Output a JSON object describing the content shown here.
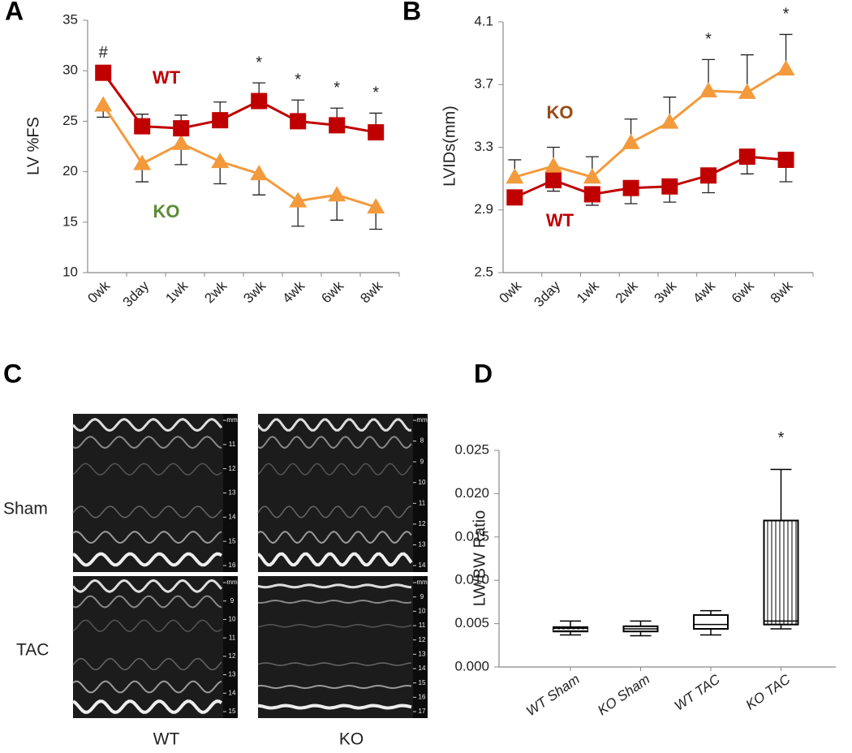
{
  "chart_data": [
    {
      "type": "line",
      "y_label": "LV %FS",
      "categories": [
        "0wk",
        "3day",
        "1wk",
        "2wk",
        "3wk",
        "4wk",
        "6wk",
        "8wk"
      ],
      "ylim": [
        10,
        35
      ],
      "yticks": [
        10,
        15,
        20,
        25,
        30,
        35
      ],
      "series": [
        {
          "name": "WT",
          "color": "#c00000",
          "label_color": "#c00000",
          "marker": "square",
          "error_side": "up",
          "values": [
            29.8,
            24.5,
            24.3,
            25.1,
            27.0,
            25.0,
            24.6,
            23.9
          ],
          "errors": [
            null,
            1.2,
            1.3,
            1.8,
            1.8,
            2.1,
            1.7,
            1.9
          ]
        },
        {
          "name": "KO",
          "color": "#f39a3c",
          "label_color": "#5b8c35",
          "marker": "triangle",
          "error_side": "down",
          "values": [
            26.6,
            20.8,
            22.8,
            21.0,
            19.8,
            17.1,
            17.7,
            16.5
          ],
          "errors": [
            1.2,
            1.8,
            2.1,
            2.2,
            2.1,
            2.5,
            2.5,
            2.2
          ]
        }
      ],
      "significance": [
        "#",
        null,
        null,
        null,
        "*",
        "*",
        "*",
        "*"
      ]
    },
    {
      "type": "line",
      "y_label": "LVIDs(mm)",
      "categories": [
        "0wk",
        "3day",
        "1wk",
        "2wk",
        "3wk",
        "4wk",
        "6wk",
        "8wk"
      ],
      "ylim": [
        2.5,
        4.1
      ],
      "yticks": [
        2.5,
        2.9,
        3.3,
        3.7,
        4.1
      ],
      "series": [
        {
          "name": "KO",
          "color": "#f39a3c",
          "label_color": "#9a4a16",
          "marker": "triangle",
          "error_side": "up",
          "values": [
            3.11,
            3.18,
            3.11,
            3.33,
            3.46,
            3.66,
            3.65,
            3.8
          ],
          "errors": [
            0.11,
            0.12,
            0.13,
            0.15,
            0.16,
            0.2,
            0.24,
            0.22
          ]
        },
        {
          "name": "WT",
          "color": "#c00000",
          "label_color": "#c00000",
          "marker": "square",
          "error_side": "down",
          "values": [
            2.98,
            3.09,
            3.0,
            3.04,
            3.05,
            3.12,
            3.24,
            3.22
          ],
          "errors": [
            null,
            0.07,
            0.07,
            0.1,
            0.1,
            0.11,
            0.11,
            0.14
          ]
        }
      ],
      "significance": [
        null,
        null,
        null,
        null,
        null,
        "*",
        null,
        "*"
      ]
    },
    {
      "type": "box",
      "y_label": "LW/BW Ratio",
      "categories": [
        "WT Sham",
        "KO Sham",
        "WT TAC",
        "KO TAC"
      ],
      "ylim": [
        0,
        0.025
      ],
      "yticks": [
        {
          "value": 0,
          "label": "0.000"
        },
        {
          "value": 0.005,
          "label": "0.005"
        },
        {
          "value": 0.01,
          "label": "0.010"
        },
        {
          "value": 0.015,
          "label": "0.015"
        },
        {
          "value": 0.02,
          "label": "0.020"
        },
        {
          "value": 0.025,
          "label": "0.025"
        }
      ],
      "min": [
        0.0037,
        0.0036,
        0.0037,
        0.0044
      ],
      "q1": [
        0.0041,
        0.0041,
        0.0044,
        0.0049
      ],
      "median": [
        0.0043,
        0.0044,
        0.0049,
        0.0053
      ],
      "q3": [
        0.0046,
        0.0047,
        0.006,
        0.0169
      ],
      "max": [
        0.0053,
        0.0053,
        0.0065,
        0.0228
      ],
      "significance": [
        null,
        null,
        null,
        "*"
      ]
    }
  ],
  "figure": {
    "panel_labels": [
      "A",
      "B",
      "C",
      "D"
    ],
    "echo": {
      "row_labels": [
        "Sham",
        "TAC"
      ],
      "column_labels": [
        "WT",
        "KO"
      ],
      "images": [
        {
          "ruler": [
            "mm",
            "11",
            "12",
            "13",
            "14",
            "15",
            "16"
          ]
        },
        {
          "ruler": [
            "mm",
            "8",
            "9",
            "10",
            "11",
            "12",
            "13",
            "14"
          ]
        },
        {
          "ruler": [
            "mm",
            "9",
            "10",
            "11",
            "12",
            "13",
            "14",
            "15"
          ]
        },
        {
          "ruler": [
            "mm",
            "9",
            "10",
            "11",
            "12",
            "13",
            "14",
            "15",
            "16",
            "17"
          ]
        }
      ]
    }
  }
}
